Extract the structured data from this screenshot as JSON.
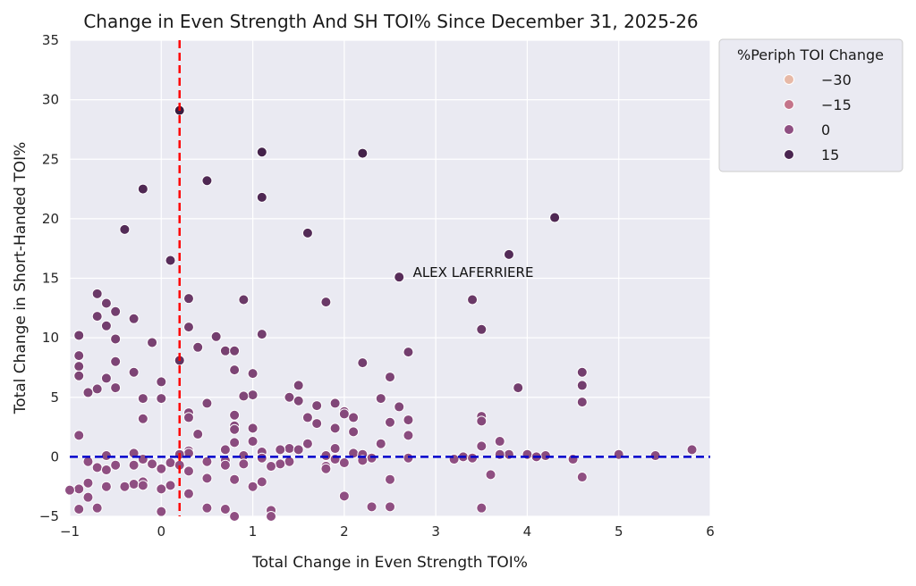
{
  "chart_data": {
    "type": "scatter",
    "title": "Change in Even Strength And SH TOI% Since December 31, 2025-26",
    "xlabel": "Total Change in Even Strength TOI%",
    "ylabel": "Total Change in Short-Handed TOI%",
    "xlim": [
      -1,
      6
    ],
    "ylim": [
      -5,
      35
    ],
    "xticks": [
      -1,
      0,
      1,
      2,
      3,
      4,
      5,
      6
    ],
    "yticks": [
      -5,
      0,
      5,
      10,
      15,
      20,
      25,
      30,
      35
    ],
    "xtick_labels": [
      "−1",
      "0",
      "1",
      "2",
      "3",
      "4",
      "5",
      "6"
    ],
    "ytick_labels": [
      "−5",
      "0",
      "5",
      "10",
      "15",
      "20",
      "25",
      "30",
      "35"
    ],
    "grid": true,
    "legend_position": "outside-right-top",
    "legend": {
      "title": "%Periph TOI Change",
      "entries": [
        {
          "label": "−30",
          "value": -30,
          "color": "#e7b9a7"
        },
        {
          "label": "−15",
          "value": -15,
          "color": "#c4748a"
        },
        {
          "label": "0",
          "value": 0,
          "color": "#8f4f82"
        },
        {
          "label": "15",
          "value": 15,
          "color": "#4a2550"
        }
      ]
    },
    "reference_lines": [
      {
        "orientation": "vertical",
        "value": 0.2,
        "color": "#ff0000",
        "style": "dashed"
      },
      {
        "orientation": "horizontal",
        "value": 0,
        "color": "#0000cc",
        "style": "dashed"
      }
    ],
    "annotations": [
      {
        "text": "ALEX LAFERRIERE",
        "x": 2.75,
        "y": 15.5
      }
    ],
    "points": [
      {
        "x": 0.2,
        "y": 29.1,
        "hue": 18
      },
      {
        "x": 1.1,
        "y": 25.6,
        "hue": 16
      },
      {
        "x": 2.2,
        "y": 25.5,
        "hue": 16
      },
      {
        "x": 0.5,
        "y": 23.2,
        "hue": 14
      },
      {
        "x": -0.2,
        "y": 22.5,
        "hue": 14
      },
      {
        "x": 1.1,
        "y": 21.8,
        "hue": 14
      },
      {
        "x": 4.3,
        "y": 20.1,
        "hue": 14
      },
      {
        "x": -0.4,
        "y": 19.1,
        "hue": 13
      },
      {
        "x": 1.6,
        "y": 18.8,
        "hue": 13
      },
      {
        "x": 3.8,
        "y": 17.0,
        "hue": 13
      },
      {
        "x": 0.1,
        "y": 16.5,
        "hue": 12
      },
      {
        "x": 2.6,
        "y": 15.1,
        "hue": 12
      },
      {
        "x": -0.7,
        "y": 13.7,
        "hue": 8
      },
      {
        "x": 0.3,
        "y": 13.3,
        "hue": 8
      },
      {
        "x": 0.9,
        "y": 13.2,
        "hue": 8
      },
      {
        "x": 3.4,
        "y": 13.2,
        "hue": 8
      },
      {
        "x": 1.8,
        "y": 13.0,
        "hue": 8
      },
      {
        "x": -0.6,
        "y": 12.9,
        "hue": 6
      },
      {
        "x": -0.5,
        "y": 12.2,
        "hue": 6
      },
      {
        "x": -0.7,
        "y": 11.8,
        "hue": 6
      },
      {
        "x": -0.3,
        "y": 11.6,
        "hue": 6
      },
      {
        "x": -0.6,
        "y": 11.0,
        "hue": 6
      },
      {
        "x": 0.3,
        "y": 10.9,
        "hue": 6
      },
      {
        "x": 3.5,
        "y": 10.7,
        "hue": 8
      },
      {
        "x": 1.1,
        "y": 10.3,
        "hue": 6
      },
      {
        "x": -0.9,
        "y": 10.2,
        "hue": 6
      },
      {
        "x": 0.6,
        "y": 10.1,
        "hue": 6
      },
      {
        "x": -0.5,
        "y": 9.9,
        "hue": 5
      },
      {
        "x": -0.1,
        "y": 9.6,
        "hue": 5
      },
      {
        "x": 0.4,
        "y": 9.2,
        "hue": 5
      },
      {
        "x": 0.7,
        "y": 8.9,
        "hue": 5
      },
      {
        "x": 0.8,
        "y": 8.9,
        "hue": 5
      },
      {
        "x": 2.7,
        "y": 8.8,
        "hue": 6
      },
      {
        "x": -0.9,
        "y": 8.5,
        "hue": 4
      },
      {
        "x": 0.2,
        "y": 8.1,
        "hue": 10
      },
      {
        "x": -0.5,
        "y": 8.0,
        "hue": 4
      },
      {
        "x": 2.2,
        "y": 7.9,
        "hue": 6
      },
      {
        "x": -0.9,
        "y": 7.6,
        "hue": 4
      },
      {
        "x": 0.8,
        "y": 7.3,
        "hue": 4
      },
      {
        "x": 4.6,
        "y": 7.1,
        "hue": 6
      },
      {
        "x": -0.3,
        "y": 7.1,
        "hue": 4
      },
      {
        "x": 1.0,
        "y": 7.0,
        "hue": 4
      },
      {
        "x": -0.9,
        "y": 6.8,
        "hue": 4
      },
      {
        "x": 2.5,
        "y": 6.7,
        "hue": 4
      },
      {
        "x": -0.6,
        "y": 6.6,
        "hue": 4
      },
      {
        "x": 0.0,
        "y": 6.3,
        "hue": 4
      },
      {
        "x": 4.6,
        "y": 6.0,
        "hue": 6
      },
      {
        "x": 1.5,
        "y": 6.0,
        "hue": 4
      },
      {
        "x": 3.9,
        "y": 5.8,
        "hue": 6
      },
      {
        "x": -0.5,
        "y": 5.8,
        "hue": 3
      },
      {
        "x": -0.7,
        "y": 5.7,
        "hue": 3
      },
      {
        "x": -0.8,
        "y": 5.4,
        "hue": 3
      },
      {
        "x": 1.0,
        "y": 5.2,
        "hue": 3
      },
      {
        "x": 0.9,
        "y": 5.1,
        "hue": 3
      },
      {
        "x": 1.4,
        "y": 5.0,
        "hue": 3
      },
      {
        "x": -0.2,
        "y": 4.9,
        "hue": 3
      },
      {
        "x": 0.0,
        "y": 4.9,
        "hue": 3
      },
      {
        "x": 2.4,
        "y": 4.9,
        "hue": 3
      },
      {
        "x": 1.5,
        "y": 4.7,
        "hue": 3
      },
      {
        "x": 4.6,
        "y": 4.6,
        "hue": 4
      },
      {
        "x": 0.5,
        "y": 4.5,
        "hue": 3
      },
      {
        "x": 1.9,
        "y": 4.5,
        "hue": 3
      },
      {
        "x": 1.7,
        "y": 4.3,
        "hue": 3
      },
      {
        "x": 2.6,
        "y": 4.2,
        "hue": 3
      },
      {
        "x": 2.0,
        "y": 3.8,
        "hue": 2
      },
      {
        "x": 0.3,
        "y": 3.7,
        "hue": 2
      },
      {
        "x": 2.0,
        "y": 3.6,
        "hue": 2
      },
      {
        "x": 0.8,
        "y": 3.5,
        "hue": 2
      },
      {
        "x": 3.5,
        "y": 3.4,
        "hue": 2
      },
      {
        "x": 0.3,
        "y": 3.3,
        "hue": 2
      },
      {
        "x": 2.1,
        "y": 3.3,
        "hue": 2
      },
      {
        "x": 1.6,
        "y": 3.3,
        "hue": 2
      },
      {
        "x": -0.2,
        "y": 3.2,
        "hue": 2
      },
      {
        "x": 2.7,
        "y": 3.1,
        "hue": 2
      },
      {
        "x": 3.5,
        "y": 3.0,
        "hue": 2
      },
      {
        "x": 2.5,
        "y": 2.9,
        "hue": 2
      },
      {
        "x": 1.7,
        "y": 2.8,
        "hue": 2
      },
      {
        "x": 0.8,
        "y": 2.6,
        "hue": 2
      },
      {
        "x": 1.0,
        "y": 2.4,
        "hue": 2
      },
      {
        "x": 1.9,
        "y": 2.4,
        "hue": 2
      },
      {
        "x": 0.8,
        "y": 2.3,
        "hue": 2
      },
      {
        "x": 2.1,
        "y": 2.1,
        "hue": 2
      },
      {
        "x": 0.4,
        "y": 1.9,
        "hue": 2
      },
      {
        "x": 2.7,
        "y": 1.8,
        "hue": 1
      },
      {
        "x": -0.9,
        "y": 1.8,
        "hue": 1
      },
      {
        "x": 1.0,
        "y": 1.3,
        "hue": 1
      },
      {
        "x": 3.7,
        "y": 1.3,
        "hue": 1
      },
      {
        "x": 0.8,
        "y": 1.2,
        "hue": 1
      },
      {
        "x": 2.4,
        "y": 1.1,
        "hue": 1
      },
      {
        "x": 1.6,
        "y": 1.1,
        "hue": 1
      },
      {
        "x": 3.5,
        "y": 0.9,
        "hue": 1
      },
      {
        "x": 1.4,
        "y": 0.7,
        "hue": 1
      },
      {
        "x": 1.9,
        "y": 0.7,
        "hue": 1
      },
      {
        "x": 0.7,
        "y": 0.6,
        "hue": 1
      },
      {
        "x": 1.3,
        "y": 0.6,
        "hue": 1
      },
      {
        "x": 5.8,
        "y": 0.6,
        "hue": 1
      },
      {
        "x": 1.5,
        "y": 0.6,
        "hue": 1
      },
      {
        "x": 0.3,
        "y": 0.5,
        "hue": 1
      },
      {
        "x": 1.1,
        "y": 0.4,
        "hue": 1
      },
      {
        "x": 2.1,
        "y": 0.3,
        "hue": 1
      },
      {
        "x": 0.3,
        "y": 0.3,
        "hue": 1
      },
      {
        "x": -0.3,
        "y": 0.3,
        "hue": 1
      },
      {
        "x": 3.8,
        "y": 0.2,
        "hue": 1
      },
      {
        "x": 5.0,
        "y": 0.2,
        "hue": 1
      },
      {
        "x": 4.0,
        "y": 0.2,
        "hue": 1
      },
      {
        "x": 2.2,
        "y": 0.2,
        "hue": 1
      },
      {
        "x": 3.7,
        "y": 0.2,
        "hue": 1
      },
      {
        "x": 0.2,
        "y": 0.2,
        "hue": 1
      },
      {
        "x": 0.9,
        "y": 0.1,
        "hue": 1
      },
      {
        "x": -0.6,
        "y": 0.1,
        "hue": 1
      },
      {
        "x": 1.8,
        "y": 0.1,
        "hue": 1
      },
      {
        "x": 4.2,
        "y": 0.1,
        "hue": 1
      },
      {
        "x": 5.4,
        "y": 0.1,
        "hue": 1
      },
      {
        "x": 3.3,
        "y": 0.0,
        "hue": 1
      },
      {
        "x": 4.1,
        "y": 0.0,
        "hue": 1
      },
      {
        "x": 3.4,
        "y": -0.1,
        "hue": 0
      },
      {
        "x": 1.1,
        "y": -0.1,
        "hue": 0
      },
      {
        "x": 2.3,
        "y": -0.1,
        "hue": 0
      },
      {
        "x": 2.7,
        "y": -0.1,
        "hue": 0
      },
      {
        "x": -0.2,
        "y": -0.2,
        "hue": 0
      },
      {
        "x": 4.5,
        "y": -0.2,
        "hue": 0
      },
      {
        "x": 3.2,
        "y": -0.2,
        "hue": 0
      },
      {
        "x": 1.9,
        "y": -0.2,
        "hue": 0
      },
      {
        "x": 2.2,
        "y": -0.3,
        "hue": 0
      },
      {
        "x": 0.7,
        "y": -0.3,
        "hue": 0
      },
      {
        "x": 0.5,
        "y": -0.4,
        "hue": 0
      },
      {
        "x": 1.4,
        "y": -0.4,
        "hue": 0
      },
      {
        "x": -0.8,
        "y": -0.4,
        "hue": 0
      },
      {
        "x": 0.1,
        "y": -0.5,
        "hue": 0
      },
      {
        "x": 2.0,
        "y": -0.5,
        "hue": 0
      },
      {
        "x": 0.9,
        "y": -0.6,
        "hue": 0
      },
      {
        "x": 1.3,
        "y": -0.6,
        "hue": 0
      },
      {
        "x": -0.1,
        "y": -0.6,
        "hue": 0
      },
      {
        "x": -0.5,
        "y": -0.7,
        "hue": 0
      },
      {
        "x": 0.2,
        "y": -0.7,
        "hue": 0
      },
      {
        "x": 0.7,
        "y": -0.7,
        "hue": 0
      },
      {
        "x": -0.3,
        "y": -0.7,
        "hue": 0
      },
      {
        "x": 1.2,
        "y": -0.8,
        "hue": 0
      },
      {
        "x": 1.8,
        "y": -0.8,
        "hue": 0
      },
      {
        "x": -0.7,
        "y": -0.9,
        "hue": 0
      },
      {
        "x": 0.0,
        "y": -1.0,
        "hue": 0
      },
      {
        "x": 1.8,
        "y": -1.0,
        "hue": 0
      },
      {
        "x": -0.6,
        "y": -1.1,
        "hue": 0
      },
      {
        "x": 0.3,
        "y": -1.2,
        "hue": 0
      },
      {
        "x": 3.6,
        "y": -1.5,
        "hue": 0
      },
      {
        "x": 4.6,
        "y": -1.7,
        "hue": 0
      },
      {
        "x": 0.5,
        "y": -1.8,
        "hue": 0
      },
      {
        "x": 2.5,
        "y": -1.9,
        "hue": 0
      },
      {
        "x": 0.8,
        "y": -1.9,
        "hue": 0
      },
      {
        "x": -0.2,
        "y": -2.1,
        "hue": 0
      },
      {
        "x": 1.1,
        "y": -2.1,
        "hue": 0
      },
      {
        "x": -0.8,
        "y": -2.2,
        "hue": 0
      },
      {
        "x": -0.3,
        "y": -2.3,
        "hue": 0
      },
      {
        "x": -0.2,
        "y": -2.4,
        "hue": 0
      },
      {
        "x": 0.1,
        "y": -2.4,
        "hue": 0
      },
      {
        "x": 1.0,
        "y": -2.5,
        "hue": 0
      },
      {
        "x": -0.6,
        "y": -2.5,
        "hue": 0
      },
      {
        "x": -0.4,
        "y": -2.5,
        "hue": 0
      },
      {
        "x": 0.0,
        "y": -2.7,
        "hue": 0
      },
      {
        "x": -0.9,
        "y": -2.7,
        "hue": 0
      },
      {
        "x": -1.0,
        "y": -2.8,
        "hue": 0
      },
      {
        "x": 0.3,
        "y": -3.1,
        "hue": 0
      },
      {
        "x": 2.0,
        "y": -3.3,
        "hue": 0
      },
      {
        "x": -0.8,
        "y": -3.4,
        "hue": 0
      },
      {
        "x": 2.3,
        "y": -4.2,
        "hue": 0
      },
      {
        "x": 2.5,
        "y": -4.2,
        "hue": 0
      },
      {
        "x": 3.5,
        "y": -4.3,
        "hue": 0
      },
      {
        "x": -0.7,
        "y": -4.3,
        "hue": 0
      },
      {
        "x": 0.5,
        "y": -4.3,
        "hue": 0
      },
      {
        "x": 0.7,
        "y": -4.4,
        "hue": 0
      },
      {
        "x": -0.9,
        "y": -4.4,
        "hue": 0
      },
      {
        "x": 1.2,
        "y": -4.5,
        "hue": 0
      },
      {
        "x": 0.0,
        "y": -4.6,
        "hue": 0
      },
      {
        "x": 0.8,
        "y": -5.0,
        "hue": 0
      },
      {
        "x": 1.2,
        "y": -5.0,
        "hue": 0
      }
    ]
  }
}
